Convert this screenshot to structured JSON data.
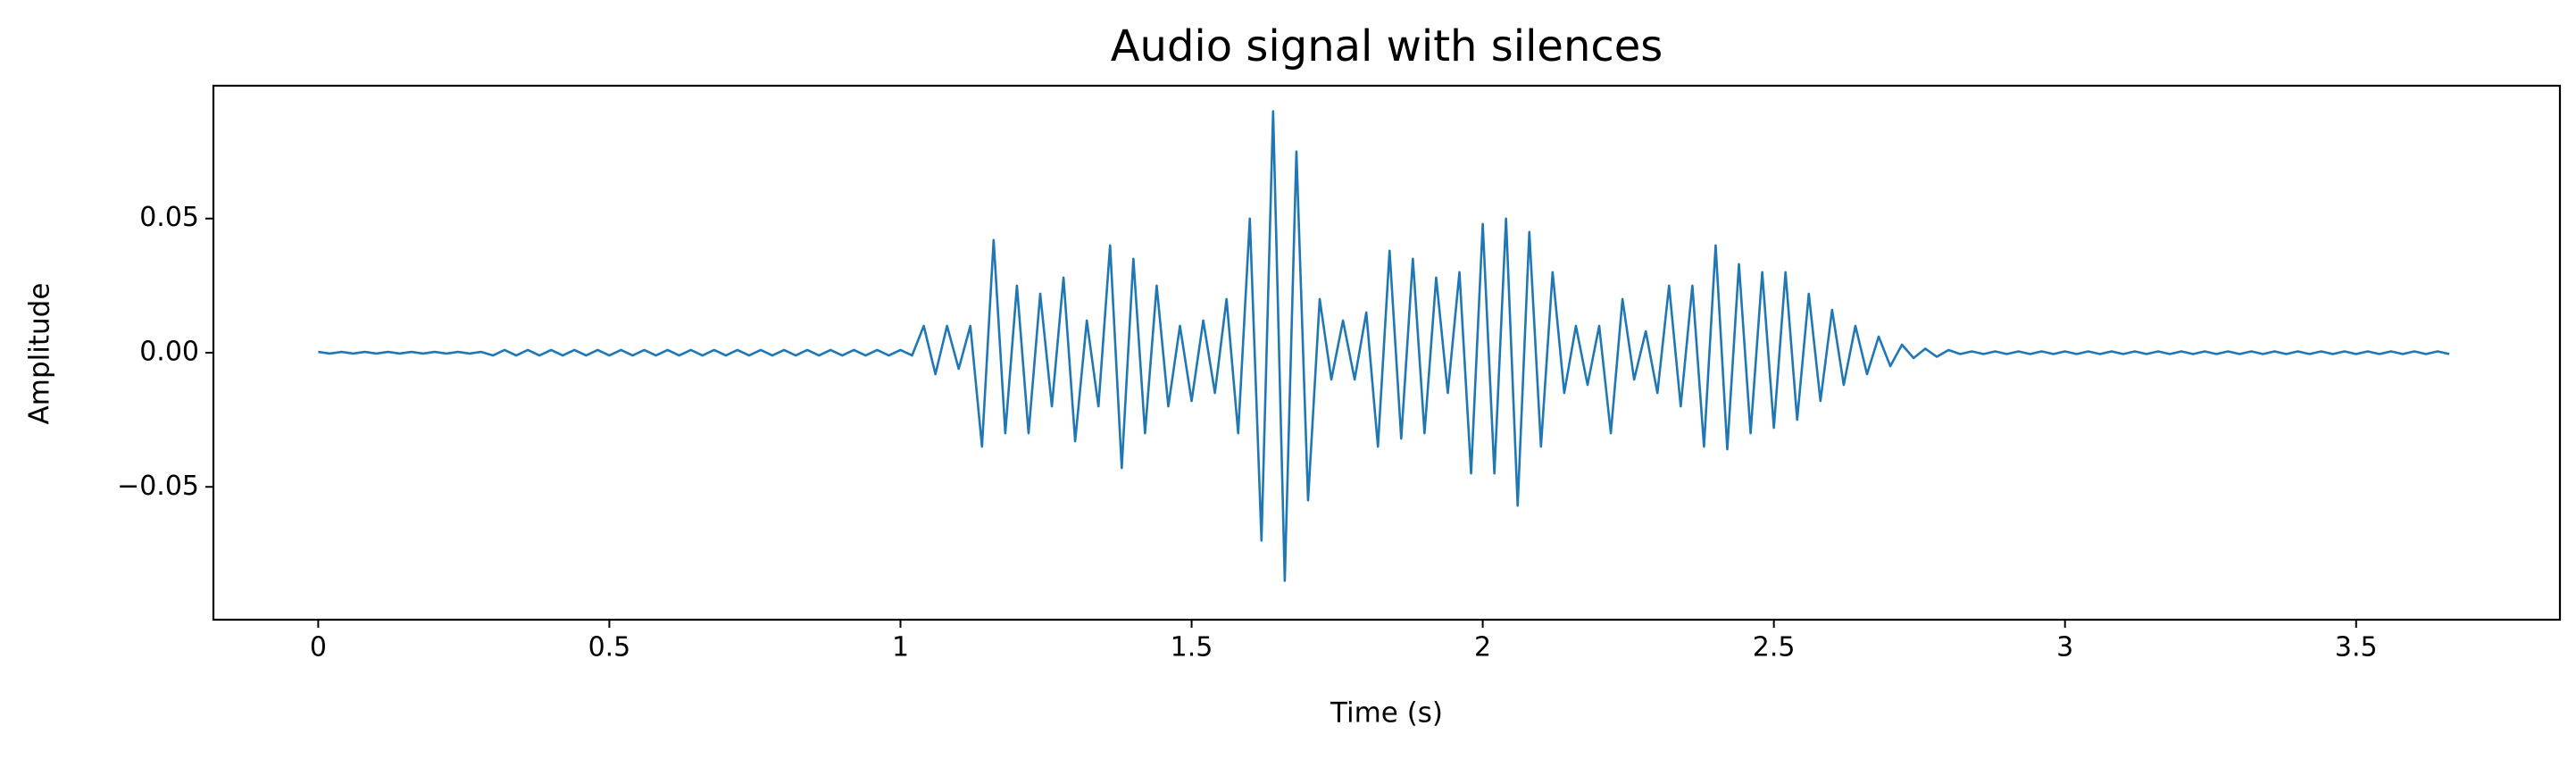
{
  "chart_data": {
    "type": "line",
    "title": "Audio signal with silences",
    "xlabel": "Time (s)",
    "ylabel": "Amplitude",
    "color": "#1f77b4",
    "grid": false,
    "xlim": [
      -0.18,
      3.85
    ],
    "ylim": [
      -0.0995,
      0.0995
    ],
    "xticks": [
      0,
      0.5,
      1,
      1.5,
      2,
      2.5,
      3,
      3.5
    ],
    "yticks": [
      {
        "value": -0.05,
        "label": "−0.05"
      },
      {
        "value": 0,
        "label": "0.00"
      },
      0.05
    ],
    "x": [
      0,
      0.02,
      0.04,
      0.06,
      0.08,
      0.1,
      0.12,
      0.14,
      0.16,
      0.18,
      0.2,
      0.22,
      0.24,
      0.26,
      0.28,
      0.3,
      0.32,
      0.34,
      0.36,
      0.38,
      0.4,
      0.42,
      0.44,
      0.46,
      0.48,
      0.5,
      0.52,
      0.54,
      0.56,
      0.58,
      0.6,
      0.62,
      0.64,
      0.66,
      0.68,
      0.7,
      0.72,
      0.74,
      0.76,
      0.78,
      0.8,
      0.82,
      0.84,
      0.86,
      0.88,
      0.9,
      0.92,
      0.94,
      0.96,
      0.98,
      1,
      1.02,
      1.04,
      1.06,
      1.08,
      1.1,
      1.12,
      1.14,
      1.16,
      1.18,
      1.2,
      1.22,
      1.24,
      1.26,
      1.28,
      1.3,
      1.32,
      1.34,
      1.36,
      1.38,
      1.4,
      1.42,
      1.44,
      1.46,
      1.48,
      1.5,
      1.52,
      1.54,
      1.56,
      1.58,
      1.6,
      1.62,
      1.64,
      1.66,
      1.68,
      1.7,
      1.72,
      1.74,
      1.76,
      1.78,
      1.8,
      1.82,
      1.84,
      1.86,
      1.88,
      1.9,
      1.92,
      1.94,
      1.96,
      1.98,
      2,
      2.02,
      2.04,
      2.06,
      2.08,
      2.1,
      2.12,
      2.14,
      2.16,
      2.18,
      2.2,
      2.22,
      2.24,
      2.26,
      2.28,
      2.3,
      2.32,
      2.34,
      2.36,
      2.38,
      2.4,
      2.42,
      2.44,
      2.46,
      2.48,
      2.5,
      2.52,
      2.54,
      2.56,
      2.58,
      2.6,
      2.62,
      2.64,
      2.66,
      2.68,
      2.7,
      2.72,
      2.74,
      2.76,
      2.78,
      2.8,
      2.82,
      2.84,
      2.86,
      2.88,
      2.9,
      2.92,
      2.94,
      2.96,
      2.98,
      3,
      3.02,
      3.04,
      3.06,
      3.08,
      3.1,
      3.12,
      3.14,
      3.16,
      3.18,
      3.2,
      3.22,
      3.24,
      3.26,
      3.28,
      3.3,
      3.32,
      3.34,
      3.36,
      3.38,
      3.4,
      3.42,
      3.44,
      3.46,
      3.48,
      3.5,
      3.52,
      3.54,
      3.56,
      3.58,
      3.6,
      3.62,
      3.64,
      3.66
    ],
    "values": [
      0.0003,
      -0.0003,
      0.0003,
      -0.0003,
      0.0003,
      -0.0003,
      0.0003,
      -0.0003,
      0.0003,
      -0.0003,
      0.0003,
      -0.0003,
      0.0003,
      -0.0003,
      0.0003,
      -0.001,
      0.001,
      -0.001,
      0.001,
      -0.001,
      0.001,
      -0.001,
      0.001,
      -0.001,
      0.001,
      -0.001,
      0.001,
      -0.001,
      0.001,
      -0.001,
      0.001,
      -0.001,
      0.001,
      -0.001,
      0.001,
      -0.001,
      0.001,
      -0.001,
      0.001,
      -0.001,
      0.001,
      -0.001,
      0.001,
      -0.001,
      0.001,
      -0.001,
      0.001,
      -0.001,
      0.001,
      -0.001,
      0.001,
      -0.001,
      0.01,
      -0.008,
      0.01,
      -0.006,
      0.01,
      -0.035,
      0.042,
      -0.03,
      0.025,
      -0.03,
      0.022,
      -0.02,
      0.028,
      -0.033,
      0.012,
      -0.02,
      0.04,
      -0.043,
      0.035,
      -0.03,
      0.025,
      -0.02,
      0.01,
      -0.018,
      0.012,
      -0.015,
      0.02,
      -0.03,
      0.05,
      -0.07,
      0.09,
      -0.085,
      0.075,
      -0.055,
      0.02,
      -0.01,
      0.012,
      -0.01,
      0.015,
      -0.035,
      0.038,
      -0.032,
      0.035,
      -0.03,
      0.028,
      -0.015,
      0.03,
      -0.045,
      0.048,
      -0.045,
      0.05,
      -0.057,
      0.045,
      -0.035,
      0.03,
      -0.015,
      0.01,
      -0.012,
      0.01,
      -0.03,
      0.02,
      -0.01,
      0.008,
      -0.015,
      0.025,
      -0.02,
      0.025,
      -0.035,
      0.04,
      -0.036,
      0.033,
      -0.03,
      0.03,
      -0.028,
      0.03,
      -0.025,
      0.022,
      -0.018,
      0.016,
      -0.012,
      0.01,
      -0.008,
      0.006,
      -0.005,
      0.003,
      -0.002,
      0.0015,
      -0.0015,
      0.001,
      -0.0005,
      0.0005,
      -0.0005,
      0.0005,
      -0.0005,
      0.0005,
      -0.0005,
      0.0005,
      -0.0005,
      0.0005,
      -0.0005,
      0.0005,
      -0.0005,
      0.0005,
      -0.0005,
      0.0005,
      -0.0005,
      0.0005,
      -0.0005,
      0.0005,
      -0.0005,
      0.0005,
      -0.0005,
      0.0005,
      -0.0005,
      0.0005,
      -0.0005,
      0.0005,
      -0.0005,
      0.0005,
      -0.0005,
      0.0005,
      -0.0005,
      0.0005,
      -0.0005,
      0.0005,
      -0.0005,
      0.0005,
      -0.0005,
      0.0005,
      -0.0005,
      0.0005,
      -0.0005
    ]
  }
}
